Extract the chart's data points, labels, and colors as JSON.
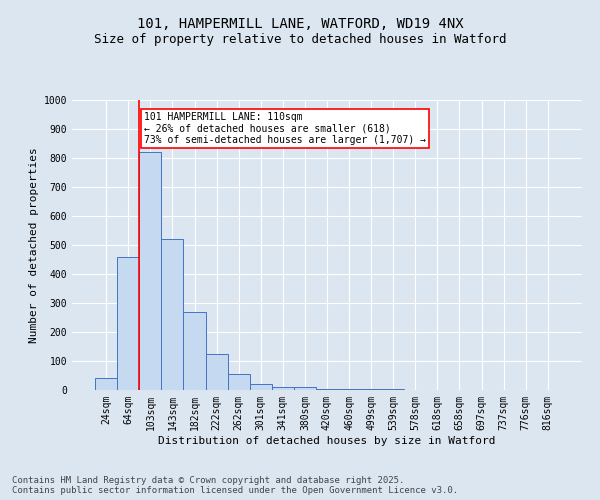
{
  "title_line1": "101, HAMPERMILL LANE, WATFORD, WD19 4NX",
  "title_line2": "Size of property relative to detached houses in Watford",
  "xlabel": "Distribution of detached houses by size in Watford",
  "ylabel": "Number of detached properties",
  "bar_labels": [
    "24sqm",
    "64sqm",
    "103sqm",
    "143sqm",
    "182sqm",
    "222sqm",
    "262sqm",
    "301sqm",
    "341sqm",
    "380sqm",
    "420sqm",
    "460sqm",
    "499sqm",
    "539sqm",
    "578sqm",
    "618sqm",
    "658sqm",
    "697sqm",
    "737sqm",
    "776sqm",
    "816sqm"
  ],
  "bar_values": [
    40,
    460,
    820,
    520,
    270,
    125,
    55,
    20,
    10,
    10,
    5,
    3,
    3,
    2,
    1,
    1,
    1,
    0,
    0,
    0,
    0
  ],
  "bar_color": "#c5d9f1",
  "bar_edge_color": "#4472c4",
  "property_line_index": 1.5,
  "property_line_color": "#ff0000",
  "annotation_text": "101 HAMPERMILL LANE: 110sqm\n← 26% of detached houses are smaller (618)\n73% of semi-detached houses are larger (1,707) →",
  "annotation_box_color": "#ffffff",
  "annotation_box_edge": "#ff0000",
  "ylim": [
    0,
    1000
  ],
  "yticks": [
    0,
    100,
    200,
    300,
    400,
    500,
    600,
    700,
    800,
    900,
    1000
  ],
  "footer_line1": "Contains HM Land Registry data © Crown copyright and database right 2025.",
  "footer_line2": "Contains public sector information licensed under the Open Government Licence v3.0.",
  "bg_color": "#dce6f1",
  "plot_bg_color": "#dce6f1",
  "title_fontsize": 10,
  "subtitle_fontsize": 9,
  "axis_label_fontsize": 8,
  "tick_fontsize": 7,
  "annotation_fontsize": 7,
  "footer_fontsize": 6.5
}
